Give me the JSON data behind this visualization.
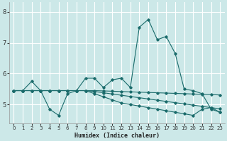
{
  "xlabel": "Humidex (Indice chaleur)",
  "background_color": "#cce8e8",
  "grid_color": "#ffffff",
  "line_color": "#1a6b6b",
  "xlim": [
    -0.5,
    23.5
  ],
  "ylim": [
    4.4,
    8.3
  ],
  "yticks": [
    5,
    6,
    7,
    8
  ],
  "xticks": [
    0,
    1,
    2,
    3,
    4,
    5,
    6,
    7,
    8,
    9,
    10,
    11,
    12,
    13,
    14,
    15,
    16,
    17,
    18,
    19,
    20,
    21,
    22,
    23
  ],
  "series": [
    [
      5.45,
      5.45,
      5.75,
      5.45,
      4.85,
      4.65,
      5.35,
      5.45,
      5.85,
      5.85,
      5.55,
      5.8,
      5.85,
      5.55,
      7.5,
      7.75,
      7.1,
      7.2,
      6.65,
      5.5,
      5.45,
      5.35,
      4.85,
      4.75
    ],
    [
      5.45,
      5.45,
      5.45,
      5.45,
      5.45,
      5.45,
      5.45,
      5.45,
      5.45,
      5.42,
      5.38,
      5.34,
      5.3,
      5.26,
      5.22,
      5.18,
      5.14,
      5.1,
      5.06,
      5.02,
      4.98,
      4.94,
      4.9,
      4.86
    ],
    [
      5.45,
      5.45,
      5.45,
      5.45,
      5.45,
      5.45,
      5.45,
      5.45,
      5.45,
      5.45,
      5.44,
      5.43,
      5.42,
      5.41,
      5.4,
      5.39,
      5.38,
      5.37,
      5.36,
      5.35,
      5.34,
      5.33,
      5.32,
      5.31
    ],
    [
      5.45,
      5.45,
      5.45,
      5.45,
      5.45,
      5.45,
      5.45,
      5.45,
      5.45,
      5.35,
      5.25,
      5.15,
      5.05,
      5.0,
      4.95,
      4.9,
      4.85,
      4.8,
      4.75,
      4.7,
      4.65,
      4.85,
      4.9,
      4.75
    ]
  ]
}
